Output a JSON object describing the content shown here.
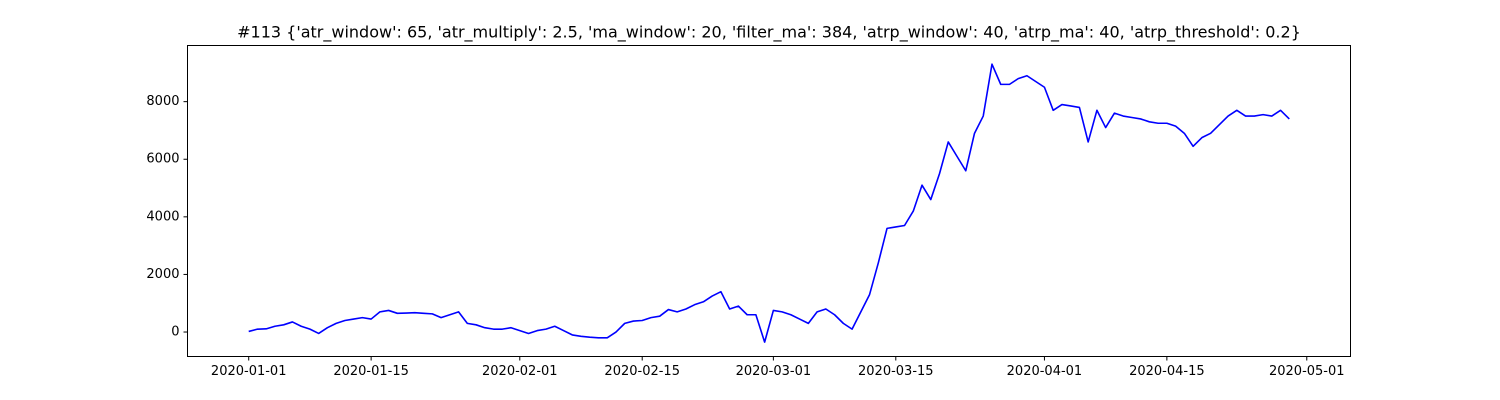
{
  "chart_data": {
    "type": "line",
    "title": "#113 {'atr_window': 65, 'atr_multiply': 2.5, 'ma_window': 20, 'filter_ma': 384, 'atrp_window': 40, 'atrp_ma': 40, 'atrp_threshold': 0.2}",
    "x": [
      "2020-01-01",
      "2020-01-02",
      "2020-01-03",
      "2020-01-04",
      "2020-01-05",
      "2020-01-06",
      "2020-01-07",
      "2020-01-08",
      "2020-01-09",
      "2020-01-10",
      "2020-01-11",
      "2020-01-12",
      "2020-01-13",
      "2020-01-14",
      "2020-01-15",
      "2020-01-16",
      "2020-01-17",
      "2020-01-18",
      "2020-01-19",
      "2020-01-20",
      "2020-01-21",
      "2020-01-22",
      "2020-01-23",
      "2020-01-24",
      "2020-01-25",
      "2020-01-26",
      "2020-01-27",
      "2020-01-28",
      "2020-01-29",
      "2020-01-30",
      "2020-01-31",
      "2020-02-01",
      "2020-02-02",
      "2020-02-03",
      "2020-02-04",
      "2020-02-05",
      "2020-02-06",
      "2020-02-07",
      "2020-02-08",
      "2020-02-09",
      "2020-02-10",
      "2020-02-11",
      "2020-02-12",
      "2020-02-13",
      "2020-02-14",
      "2020-02-15",
      "2020-02-16",
      "2020-02-17",
      "2020-02-18",
      "2020-02-19",
      "2020-02-20",
      "2020-02-21",
      "2020-02-22",
      "2020-02-23",
      "2020-02-24",
      "2020-02-25",
      "2020-02-26",
      "2020-02-27",
      "2020-02-28",
      "2020-02-29",
      "2020-03-01",
      "2020-03-02",
      "2020-03-03",
      "2020-03-04",
      "2020-03-05",
      "2020-03-06",
      "2020-03-07",
      "2020-03-08",
      "2020-03-09",
      "2020-03-10",
      "2020-03-11",
      "2020-03-12",
      "2020-03-13",
      "2020-03-14",
      "2020-03-15",
      "2020-03-16",
      "2020-03-17",
      "2020-03-18",
      "2020-03-19",
      "2020-03-20",
      "2020-03-21",
      "2020-03-22",
      "2020-03-23",
      "2020-03-24",
      "2020-03-25",
      "2020-03-26",
      "2020-03-27",
      "2020-03-28",
      "2020-03-29",
      "2020-03-30",
      "2020-03-31",
      "2020-04-01",
      "2020-04-02",
      "2020-04-03",
      "2020-04-04",
      "2020-04-05",
      "2020-04-06",
      "2020-04-07",
      "2020-04-08",
      "2020-04-09",
      "2020-04-10",
      "2020-04-11",
      "2020-04-12",
      "2020-04-13",
      "2020-04-14",
      "2020-04-15",
      "2020-04-16",
      "2020-04-17",
      "2020-04-18",
      "2020-04-19",
      "2020-04-20",
      "2020-04-21",
      "2020-04-22",
      "2020-04-23",
      "2020-04-24",
      "2020-04-25",
      "2020-04-26",
      "2020-04-27",
      "2020-04-28",
      "2020-04-29"
    ],
    "series": [
      {
        "color": "#0000ff",
        "values": [
          20,
          100,
          110,
          200,
          250,
          350,
          200,
          100,
          -50,
          150,
          300,
          400,
          450,
          500,
          450,
          700,
          750,
          650,
          660,
          670,
          650,
          630,
          500,
          600,
          700,
          300,
          250,
          150,
          100,
          100,
          150,
          50,
          -50,
          50,
          100,
          200,
          50,
          -100,
          -150,
          -180,
          -200,
          -200,
          0,
          300,
          380,
          400,
          500,
          550,
          780,
          700,
          800,
          950,
          1050,
          1250,
          1400,
          800,
          900,
          600,
          600,
          -350,
          750,
          700,
          600,
          450,
          300,
          700,
          800,
          600,
          300,
          100,
          700,
          1300,
          2400,
          3600,
          3650,
          3700,
          4200,
          5100,
          4600,
          5500,
          6600,
          6100,
          5600,
          6900,
          7500,
          9300,
          8600,
          8600,
          8800,
          8900,
          8700,
          8500,
          7700,
          7900,
          7850,
          7800,
          6600,
          7700,
          7100,
          7600,
          7500,
          7450,
          7400,
          7300,
          7250,
          7250,
          7150,
          6900,
          6450,
          6750,
          6900,
          7200,
          7500,
          7700,
          7500,
          7500,
          7550,
          7500,
          7700,
          7400
        ]
      }
    ],
    "xlim": [
      "2019-12-25",
      "2020-05-06"
    ],
    "xticks": [
      "2020-01-01",
      "2020-01-15",
      "2020-02-01",
      "2020-02-15",
      "2020-03-01",
      "2020-03-15",
      "2020-04-01",
      "2020-04-15",
      "2020-05-01"
    ],
    "ylim": [
      -850,
      9950
    ],
    "yticks": [
      0,
      2000,
      4000,
      6000,
      8000
    ],
    "grid": false
  }
}
